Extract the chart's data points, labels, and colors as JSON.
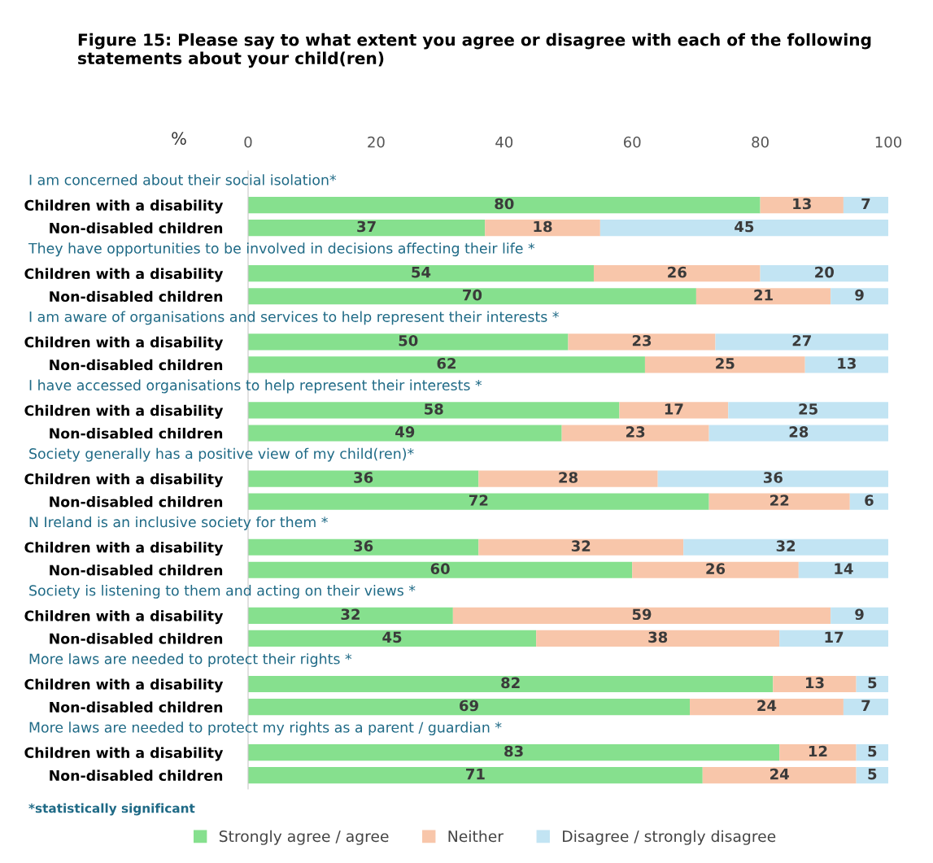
{
  "chart_data": {
    "type": "bar",
    "orientation": "horizontal",
    "stacked": true,
    "title": "Figure 15: Please say to what extent you agree or disagree with each of the following statements about your child(ren)",
    "xlabel": "%",
    "categories": [
      "Children with a disability",
      "Non-disabled children",
      "Children with a disability",
      "Non-disabled children",
      "Children with a disability",
      "Non-disabled children",
      "Children with a disability",
      "Non-disabled children",
      "Children with a disability",
      "Non-disabled children",
      "Children with a disability",
      "Non-disabled children",
      "Children with a disability",
      "Non-disabled children",
      "Children with a disability",
      "Non-disabled children",
      "Children with a disability",
      "Non-disabled children"
    ],
    "series": [
      {
        "name": "Strongly agree / agree",
        "color": "#86e08e",
        "values": [
          80,
          37,
          54,
          70,
          50,
          62,
          58,
          49,
          36,
          72,
          36,
          60,
          32,
          45,
          82,
          69,
          83,
          71
        ]
      },
      {
        "name": "Neither",
        "color": "#f8c6aa",
        "values": [
          13,
          18,
          26,
          21,
          23,
          25,
          17,
          23,
          28,
          22,
          32,
          26,
          59,
          38,
          13,
          24,
          12,
          24
        ]
      },
      {
        "name": "Disagree / strongly disagree",
        "color": "#c2e4f3",
        "values": [
          7,
          45,
          20,
          9,
          27,
          13,
          25,
          28,
          36,
          6,
          32,
          14,
          9,
          17,
          5,
          7,
          5,
          5
        ]
      }
    ],
    "annotations": [
      "I am concerned about their social isolation*",
      "They have opportunities to be involved in decisions affecting their life *",
      "I am aware of organisations and services to help represent their interests *",
      "I have accessed organisations to help represent their interests *",
      "Society generally has a positive view of my child(ren)*",
      "N Ireland is an inclusive society for them *",
      "Society is listening to them and acting on their views *",
      "More laws are needed to protect their rights *",
      "More laws are needed to protect my rights as a parent / guardian *",
      "*statistically significant"
    ],
    "xlim": [
      0,
      100
    ],
    "xticks": [
      0,
      20,
      40,
      60,
      80,
      100
    ],
    "data_labels": true,
    "grid": false,
    "legend": "bottom"
  }
}
